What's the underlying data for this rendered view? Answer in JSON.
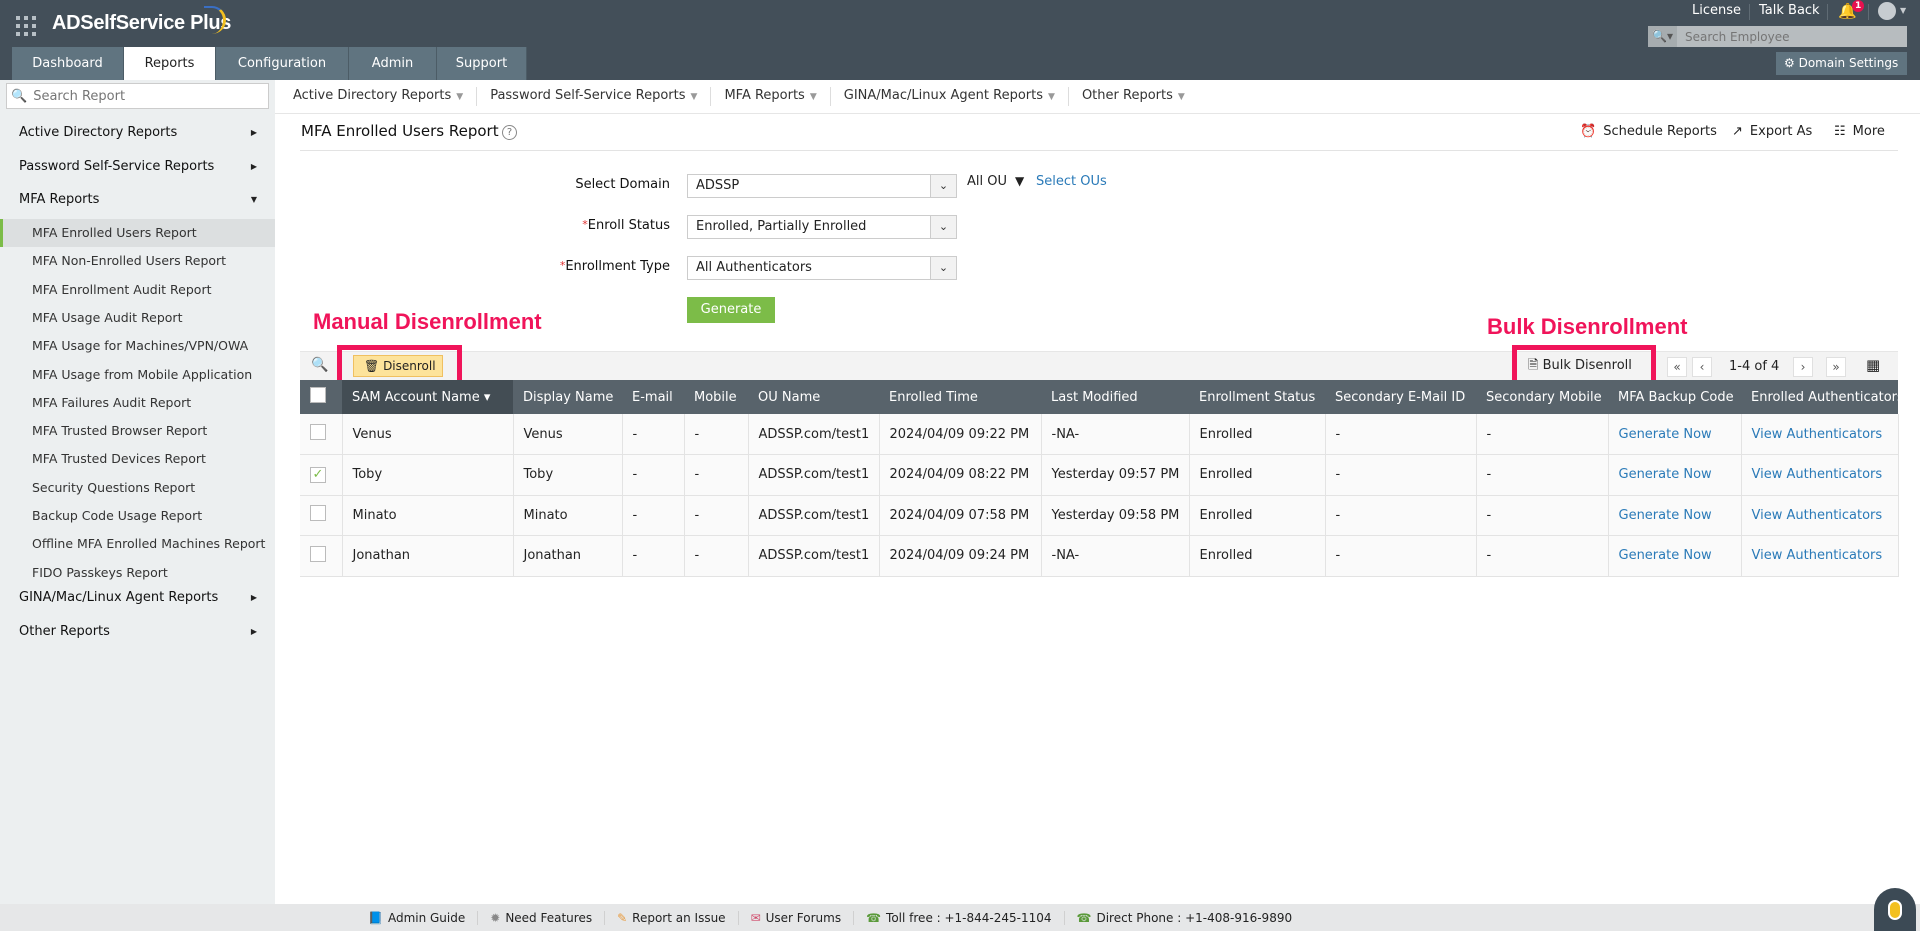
{
  "app": {
    "name": "ADSelfService Plus"
  },
  "tabs": [
    {
      "label": "Dashboard"
    },
    {
      "label": "Reports",
      "active": true
    },
    {
      "label": "Configuration"
    },
    {
      "label": "Admin"
    },
    {
      "label": "Support"
    }
  ],
  "top": {
    "license": "License",
    "talk_back": "Talk Back",
    "notification_count": "1",
    "search_placeholder": "Search Employee",
    "domain_settings": "Domain Settings"
  },
  "sidebar": {
    "search_placeholder": "Search Report",
    "sections": [
      {
        "label": "Active Directory Reports"
      },
      {
        "label": "Password Self-Service Reports"
      },
      {
        "label": "MFA Reports",
        "expanded": true
      },
      {
        "label": "GINA/Mac/Linux Agent Reports"
      },
      {
        "label": "Other Reports"
      }
    ],
    "mfa_items": [
      {
        "label": "MFA Enrolled Users Report",
        "selected": true
      },
      {
        "label": "MFA Non-Enrolled Users Report"
      },
      {
        "label": "MFA Enrollment Audit Report"
      },
      {
        "label": "MFA Usage Audit Report"
      },
      {
        "label": "MFA Usage for Machines/VPN/OWA"
      },
      {
        "label": "MFA Usage from Mobile Application"
      },
      {
        "label": "MFA Failures Audit Report"
      },
      {
        "label": "MFA Trusted Browser Report"
      },
      {
        "label": "MFA Trusted Devices Report"
      },
      {
        "label": "Security Questions Report"
      },
      {
        "label": "Backup Code Usage Report"
      },
      {
        "label": "Offline MFA Enrolled Machines Report"
      },
      {
        "label": "FIDO Passkeys Report"
      }
    ]
  },
  "subnav": [
    {
      "label": "Active Directory Reports"
    },
    {
      "label": "Password Self-Service Reports"
    },
    {
      "label": "MFA Reports"
    },
    {
      "label": "GINA/Mac/Linux Agent Reports"
    },
    {
      "label": "Other Reports"
    }
  ],
  "report": {
    "title": "MFA Enrolled Users Report",
    "actions": {
      "schedule": "Schedule Reports",
      "export": "Export As",
      "more": "More"
    }
  },
  "form": {
    "domain_label": "Select Domain",
    "domain_value": "ADSSP",
    "all_ou": "All OU",
    "select_ous": "Select OUs",
    "status_label": "Enroll Status",
    "status_value": "Enrolled, Partially Enrolled",
    "type_label": "Enrollment Type",
    "type_value": "All Authenticators",
    "generate": "Generate"
  },
  "annotations": {
    "manual": "Manual Disenrollment",
    "bulk": "Bulk Disenrollment",
    "color": "#f0145a"
  },
  "toolbar": {
    "disenroll": "Disenroll",
    "bulk_disenroll": "Bulk Disenroll",
    "page_info": "1-4 of 4"
  },
  "table": {
    "columns": [
      "SAM Account Name",
      "Display Name",
      "E-mail",
      "Mobile",
      "OU Name",
      "Enrolled Time",
      "Last Modified",
      "Enrollment Status",
      "Secondary E-Mail ID",
      "Secondary Mobile",
      "MFA Backup Code",
      "Enrolled Authenticators"
    ],
    "rows": [
      {
        "checked": false,
        "cells": [
          "Venus",
          "Venus",
          "-",
          "-",
          "ADSSP.com/test1",
          "2024/04/09 09:22 PM",
          "-NA-",
          "Enrolled",
          "-",
          "-",
          "Generate Now",
          "View Authenticators"
        ]
      },
      {
        "checked": true,
        "cells": [
          "Toby",
          "Toby",
          "-",
          "-",
          "ADSSP.com/test1",
          "2024/04/09 08:22 PM",
          "Yesterday 09:57 PM",
          "Enrolled",
          "-",
          "-",
          "Generate Now",
          "View Authenticators"
        ]
      },
      {
        "checked": false,
        "cells": [
          "Minato",
          "Minato",
          "-",
          "-",
          "ADSSP.com/test1",
          "2024/04/09 07:58 PM",
          "Yesterday 09:58 PM",
          "Enrolled",
          "-",
          "-",
          "Generate Now",
          "View Authenticators"
        ]
      },
      {
        "checked": false,
        "cells": [
          "Jonathan",
          "Jonathan",
          "-",
          "-",
          "ADSSP.com/test1",
          "2024/04/09 09:24 PM",
          "-NA-",
          "Enrolled",
          "-",
          "-",
          "Generate Now",
          "View Authenticators"
        ]
      }
    ]
  },
  "footer": [
    {
      "label": "Admin Guide",
      "icon": "book-icon"
    },
    {
      "label": "Need Features",
      "icon": "bulb-icon"
    },
    {
      "label": "Report an Issue",
      "icon": "report-icon"
    },
    {
      "label": "User Forums",
      "icon": "forum-icon"
    },
    {
      "label": "Toll free : +1-844-245-1104",
      "icon": "phone-icon"
    },
    {
      "label": "Direct Phone : +1-408-916-9890",
      "icon": "phone-icon"
    }
  ]
}
